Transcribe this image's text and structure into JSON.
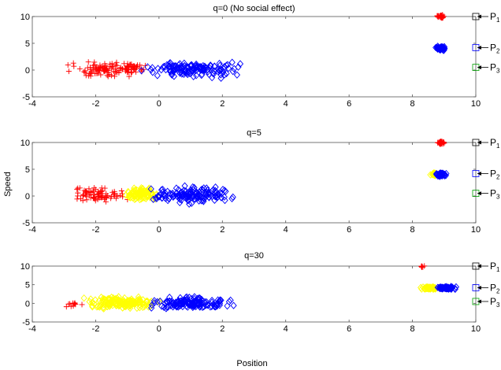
{
  "figure": {
    "ylabel": "Speed",
    "xlabel": "Position"
  },
  "chart_data": [
    {
      "type": "scatter",
      "title": "q=0 (No social effect)",
      "xlim": [
        -4,
        10
      ],
      "ylim": [
        -5,
        10
      ],
      "xticks": [
        -4,
        -2,
        0,
        2,
        4,
        6,
        8,
        10
      ],
      "yticks": [
        -5,
        0,
        5,
        10
      ],
      "clusters": [
        {
          "color": "#ff0000",
          "marker": "plus",
          "n": 90,
          "x": [
            -3.2,
            -0.4
          ],
          "y": [
            -1.8,
            2.0
          ]
        },
        {
          "color": "#ff0000",
          "marker": "plus",
          "n": 45,
          "x": [
            -1.4,
            -0.3
          ],
          "y": [
            -0.6,
            1.4
          ]
        },
        {
          "color": "#0000ff",
          "marker": "diamond",
          "n": 150,
          "x": [
            -0.8,
            2.9
          ],
          "y": [
            -1.8,
            2.2
          ]
        },
        {
          "color": "#ff0000",
          "marker": "plus",
          "n": 40,
          "x": [
            8.75,
            9.05
          ],
          "y": [
            9.6,
            10.4
          ]
        },
        {
          "color": "#0000ff",
          "marker": "diamond",
          "n": 55,
          "x": [
            8.7,
            9.1
          ],
          "y": [
            3.6,
            4.5
          ]
        }
      ],
      "profiles": [
        {
          "label": "P",
          "sub": "1",
          "y": 10,
          "color": "#000000"
        },
        {
          "label": "P",
          "sub": "2",
          "y": 4.2,
          "color": "#0000ff"
        },
        {
          "label": "P",
          "sub": "3",
          "y": 0.5,
          "color": "#00a000"
        }
      ]
    },
    {
      "type": "scatter",
      "title": "q=5",
      "xlim": [
        -4,
        10
      ],
      "ylim": [
        -5,
        10
      ],
      "xticks": [
        -4,
        -2,
        0,
        2,
        4,
        6,
        8,
        10
      ],
      "yticks": [
        -5,
        0,
        5,
        10
      ],
      "clusters": [
        {
          "color": "#ff0000",
          "marker": "plus",
          "n": 80,
          "x": [
            -3.2,
            -0.8
          ],
          "y": [
            -1.8,
            2.0
          ]
        },
        {
          "color": "#ffff00",
          "marker": "diamond",
          "n": 90,
          "x": [
            -1.3,
            0.2
          ],
          "y": [
            -1.3,
            2.0
          ]
        },
        {
          "color": "#0000ff",
          "marker": "diamond",
          "n": 150,
          "x": [
            -0.5,
            2.6
          ],
          "y": [
            -1.8,
            2.2
          ]
        },
        {
          "color": "#ff0000",
          "marker": "plus",
          "n": 40,
          "x": [
            8.75,
            9.05
          ],
          "y": [
            9.6,
            10.4
          ]
        },
        {
          "color": "#ffff00",
          "marker": "diamond",
          "n": 15,
          "x": [
            8.55,
            8.8
          ],
          "y": [
            3.6,
            4.6
          ]
        },
        {
          "color": "#0000ff",
          "marker": "diamond",
          "n": 55,
          "x": [
            8.7,
            9.1
          ],
          "y": [
            3.5,
            4.5
          ]
        }
      ],
      "profiles": [
        {
          "label": "P",
          "sub": "1",
          "y": 10,
          "color": "#000000"
        },
        {
          "label": "P",
          "sub": "2",
          "y": 4.2,
          "color": "#0000ff"
        },
        {
          "label": "P",
          "sub": "3",
          "y": 0.5,
          "color": "#00a000"
        }
      ]
    },
    {
      "type": "scatter",
      "title": "q=30",
      "xlim": [
        -4,
        10
      ],
      "ylim": [
        -5,
        10
      ],
      "xticks": [
        -4,
        -2,
        0,
        2,
        4,
        6,
        8,
        10
      ],
      "yticks": [
        -5,
        0,
        5,
        10
      ],
      "clusters": [
        {
          "color": "#ff0000",
          "marker": "plus",
          "n": 12,
          "x": [
            -3.2,
            -2.3
          ],
          "y": [
            -1.6,
            0.8
          ]
        },
        {
          "color": "#ffff00",
          "marker": "diamond",
          "n": 170,
          "x": [
            -2.6,
            0.3
          ],
          "y": [
            -2.0,
            2.2
          ]
        },
        {
          "color": "#0000ff",
          "marker": "diamond",
          "n": 150,
          "x": [
            -0.6,
            2.6
          ],
          "y": [
            -1.8,
            2.2
          ]
        },
        {
          "color": "#ff0000",
          "marker": "plus",
          "n": 6,
          "x": [
            8.2,
            8.45
          ],
          "y": [
            9.6,
            10.2
          ]
        },
        {
          "color": "#ffff00",
          "marker": "diamond",
          "n": 60,
          "x": [
            8.2,
            8.9
          ],
          "y": [
            3.6,
            4.6
          ]
        },
        {
          "color": "#0000ff",
          "marker": "diamond",
          "n": 70,
          "x": [
            8.6,
            9.5
          ],
          "y": [
            3.6,
            4.6
          ]
        }
      ],
      "profiles": [
        {
          "label": "P",
          "sub": "1",
          "y": 10,
          "color": "#000000"
        },
        {
          "label": "P",
          "sub": "2",
          "y": 4.2,
          "color": "#0000ff"
        },
        {
          "label": "P",
          "sub": "3",
          "y": 0.5,
          "color": "#00a000"
        }
      ]
    }
  ]
}
